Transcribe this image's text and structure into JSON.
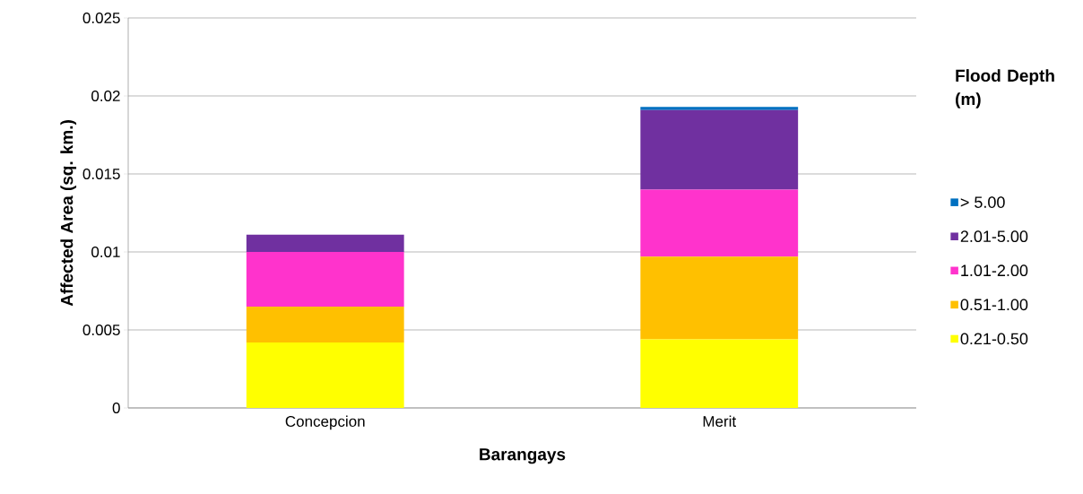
{
  "chart_data": {
    "type": "bar",
    "stacked": true,
    "xlabel": "Barangays",
    "ylabel": "Affected Area (sq. km.)",
    "legend_title": "Flood Depth (m)",
    "categories": [
      "Concepcion",
      "Merit"
    ],
    "series": [
      {
        "name": "0.21-0.50",
        "color": "#ffff00",
        "values": [
          0.0042,
          0.0044
        ]
      },
      {
        "name": "0.51-1.00",
        "color": "#ffc000",
        "values": [
          0.0023,
          0.0053
        ]
      },
      {
        "name": "1.01-2.00",
        "color": "#ff33cc",
        "values": [
          0.0035,
          0.0043
        ]
      },
      {
        "name": "2.01-5.00",
        "color": "#7030a0",
        "values": [
          0.0011,
          0.0051
        ]
      },
      {
        "name": "> 5.00",
        "color": "#0070c0",
        "values": [
          0,
          0.0002
        ]
      }
    ],
    "ylim": [
      0,
      0.025
    ],
    "yticks": [
      0,
      0.005,
      0.01,
      0.015,
      0.02,
      0.025
    ],
    "grid": "y",
    "legend": "right"
  }
}
